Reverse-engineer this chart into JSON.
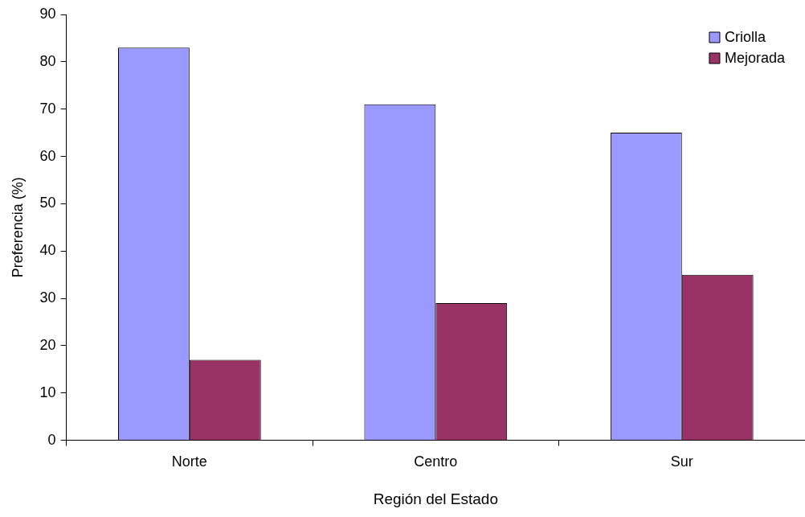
{
  "chart_data": {
    "type": "bar",
    "xlabel": "Región del Estado",
    "ylabel": "Preferencia (%)",
    "categories": [
      "Norte",
      "Centro",
      "Sur"
    ],
    "series": [
      {
        "name": "Criolla",
        "color": "#9999ff",
        "values": [
          83,
          71,
          65
        ]
      },
      {
        "name": "Mejorada",
        "color": "#993366",
        "values": [
          17,
          29,
          35
        ]
      }
    ],
    "ylim": [
      0,
      90
    ],
    "yticks": [
      0,
      10,
      20,
      30,
      40,
      50,
      60,
      70,
      80,
      90
    ],
    "grid": false,
    "legend": "top right"
  }
}
